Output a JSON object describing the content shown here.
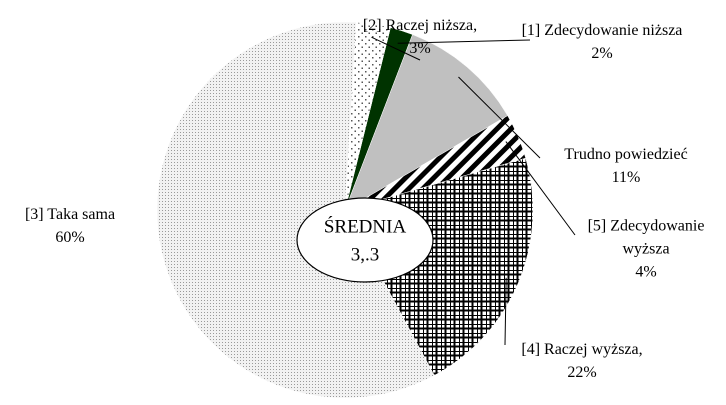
{
  "chart_data": {
    "type": "pie",
    "categories": [
      "[1] Zdecydowanie niższa",
      "Trudno powiedzieć",
      "[5] Zdecydowanie wyższa",
      "[4] Raczej wyższa,",
      "[3] Taka sama",
      "[2] Raczej niższa,"
    ],
    "values": [
      2,
      11,
      4,
      22,
      60,
      3
    ],
    "value_labels": [
      "2%",
      "11%",
      "4%",
      "22%",
      "60%",
      "3%"
    ],
    "colors": [
      "#003300",
      "#c0c0c0",
      "#000000",
      "#000000",
      "#bdbdbd",
      "#808080"
    ],
    "center_label": {
      "title": "ŚREDNIA",
      "value": "3,.3"
    }
  }
}
